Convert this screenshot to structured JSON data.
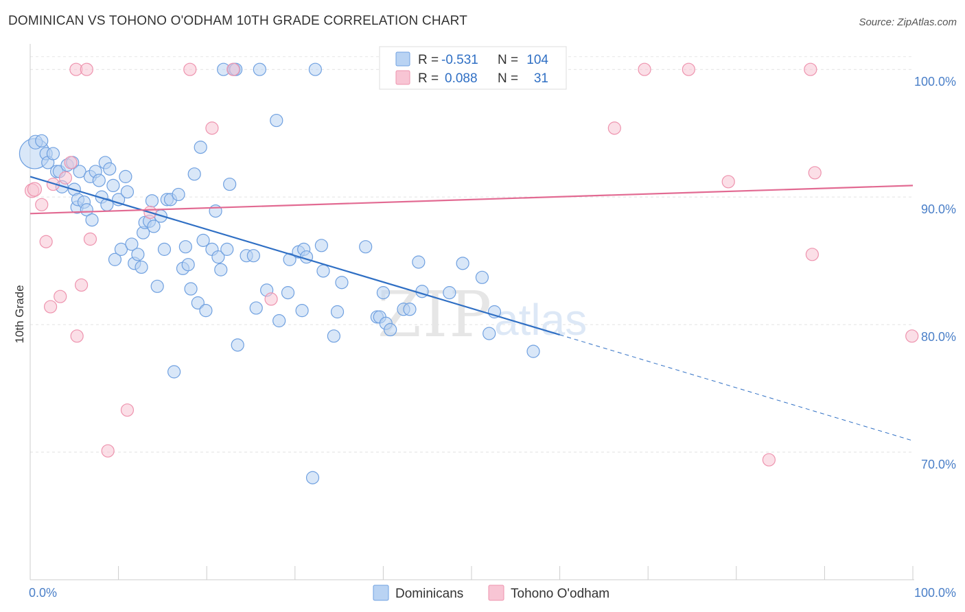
{
  "title": "DOMINICAN VS TOHONO O'ODHAM 10TH GRADE CORRELATION CHART",
  "source": "Source: ZipAtlas.com",
  "watermark": {
    "part1": "ZIP",
    "part2": "atlas"
  },
  "chart_data": {
    "type": "scatter",
    "ylabel": "10th Grade",
    "xlim": [
      0,
      100
    ],
    "ylim": [
      60,
      102
    ],
    "x_tick_labels": [
      {
        "value": 0,
        "label": "0.0%"
      },
      {
        "value": 100,
        "label": "100.0%"
      }
    ],
    "y_tick_labels": [
      {
        "value": 100,
        "label": "100.0%"
      },
      {
        "value": 90,
        "label": "90.0%"
      },
      {
        "value": 80,
        "label": "80.0%"
      },
      {
        "value": 70,
        "label": "70.0%"
      }
    ],
    "grid": true,
    "legend_position": "bottom-center",
    "stats": [
      {
        "r_label": "R =",
        "r": "-0.531",
        "n_label": "N =",
        "n": "104",
        "color": "#a9c8ef"
      },
      {
        "r_label": "R =",
        "r": "0.088",
        "n_label": "N =",
        "n": "31",
        "color": "#f5b5c8"
      }
    ],
    "series": [
      {
        "name": "Dominicans",
        "color": "#6fa0e0",
        "fill": "#b9d3f3",
        "trend": {
          "x1": 0,
          "y1": 91.6,
          "x2": 60,
          "y2": 79.2,
          "dash_to_x": 100,
          "dash_to_y": 70.9,
          "color": "#2f6fc4"
        },
        "points": [
          [
            0.5,
            93.4,
            22
          ],
          [
            0.6,
            94.3,
            10
          ],
          [
            1.3,
            94.4,
            9
          ],
          [
            1.8,
            93.4,
            9
          ],
          [
            2.0,
            92.7,
            9
          ],
          [
            2.6,
            93.4,
            9
          ],
          [
            3.0,
            92.0,
            9
          ],
          [
            3.3,
            92.0,
            9
          ],
          [
            3.6,
            90.8,
            9
          ],
          [
            4.2,
            92.5,
            9
          ],
          [
            4.8,
            92.7,
            9
          ],
          [
            5.0,
            90.6,
            9
          ],
          [
            5.3,
            89.2,
            9
          ],
          [
            5.4,
            89.8,
            9
          ],
          [
            5.6,
            92.0,
            9
          ],
          [
            6.1,
            89.6,
            9
          ],
          [
            6.4,
            89.0,
            9
          ],
          [
            6.8,
            91.6,
            9
          ],
          [
            7.0,
            88.2,
            9
          ],
          [
            7.4,
            92.0,
            9
          ],
          [
            7.8,
            91.3,
            9
          ],
          [
            8.1,
            90.0,
            9
          ],
          [
            8.5,
            92.7,
            9
          ],
          [
            8.7,
            89.4,
            9
          ],
          [
            9.0,
            92.2,
            9
          ],
          [
            9.4,
            90.9,
            9
          ],
          [
            9.6,
            85.1,
            9
          ],
          [
            10.0,
            89.8,
            9
          ],
          [
            10.3,
            85.9,
            9
          ],
          [
            10.8,
            91.6,
            9
          ],
          [
            11.0,
            90.4,
            9
          ],
          [
            11.5,
            86.3,
            9
          ],
          [
            11.8,
            84.8,
            9
          ],
          [
            12.2,
            85.5,
            9
          ],
          [
            12.6,
            84.5,
            9
          ],
          [
            12.8,
            87.2,
            9
          ],
          [
            13.0,
            88.0,
            9
          ],
          [
            13.5,
            88.1,
            9
          ],
          [
            13.8,
            89.7,
            9
          ],
          [
            14.0,
            87.7,
            9
          ],
          [
            14.4,
            83.0,
            9
          ],
          [
            14.8,
            88.5,
            9
          ],
          [
            15.2,
            85.9,
            9
          ],
          [
            15.5,
            89.8,
            9
          ],
          [
            15.9,
            89.8,
            9
          ],
          [
            16.3,
            76.3,
            9
          ],
          [
            16.8,
            90.2,
            9
          ],
          [
            17.3,
            84.4,
            9
          ],
          [
            17.6,
            86.1,
            9
          ],
          [
            17.9,
            84.7,
            9
          ],
          [
            18.2,
            82.8,
            9
          ],
          [
            18.6,
            91.8,
            9
          ],
          [
            19.0,
            81.7,
            9
          ],
          [
            19.3,
            93.9,
            9
          ],
          [
            19.6,
            86.6,
            9
          ],
          [
            19.9,
            81.1,
            9
          ],
          [
            20.6,
            85.9,
            9
          ],
          [
            21.0,
            88.9,
            9
          ],
          [
            21.3,
            85.3,
            9
          ],
          [
            21.6,
            84.3,
            9
          ],
          [
            21.9,
            100.0,
            9
          ],
          [
            22.3,
            85.9,
            9
          ],
          [
            22.6,
            91.0,
            9
          ],
          [
            23.1,
            100.0,
            9
          ],
          [
            23.3,
            100.0,
            9
          ],
          [
            23.5,
            78.4,
            9
          ],
          [
            24.5,
            85.4,
            9
          ],
          [
            25.3,
            85.4,
            9
          ],
          [
            25.6,
            81.3,
            9
          ],
          [
            26.0,
            100.0,
            9
          ],
          [
            26.8,
            82.7,
            9
          ],
          [
            27.9,
            96.0,
            9
          ],
          [
            28.2,
            80.3,
            9
          ],
          [
            29.2,
            82.5,
            9
          ],
          [
            29.4,
            85.1,
            9
          ],
          [
            30.4,
            85.7,
            9
          ],
          [
            30.8,
            81.1,
            9
          ],
          [
            31.0,
            85.9,
            9
          ],
          [
            31.3,
            85.3,
            9
          ],
          [
            32.0,
            68.0,
            9
          ],
          [
            32.3,
            100.0,
            9
          ],
          [
            33.0,
            86.2,
            9
          ],
          [
            33.2,
            84.2,
            9
          ],
          [
            34.4,
            79.1,
            9
          ],
          [
            34.8,
            81.0,
            9
          ],
          [
            35.3,
            83.3,
            9
          ],
          [
            38.0,
            86.1,
            9
          ],
          [
            39.3,
            80.6,
            9
          ],
          [
            39.6,
            80.6,
            9
          ],
          [
            40.0,
            82.5,
            9
          ],
          [
            40.3,
            80.1,
            9
          ],
          [
            40.8,
            79.6,
            9
          ],
          [
            42.3,
            81.2,
            9
          ],
          [
            43.0,
            81.2,
            9
          ],
          [
            44.0,
            84.9,
            9
          ],
          [
            44.4,
            82.6,
            9
          ],
          [
            47.5,
            82.5,
            9
          ],
          [
            49.0,
            84.8,
            9
          ],
          [
            51.2,
            83.7,
            9
          ],
          [
            52.0,
            79.3,
            9
          ],
          [
            52.6,
            81.0,
            9
          ],
          [
            57.0,
            77.9,
            9
          ]
        ]
      },
      {
        "name": "Tohono O'odham",
        "color": "#ee93ae",
        "fill": "#f8c5d4",
        "trend": {
          "x1": 0,
          "y1": 88.7,
          "x2": 100,
          "y2": 90.9,
          "color": "#e26a92"
        },
        "points": [
          [
            0.2,
            90.5,
            10
          ],
          [
            0.5,
            90.6,
            10
          ],
          [
            1.3,
            89.4,
            9
          ],
          [
            1.8,
            86.5,
            9
          ],
          [
            2.3,
            81.4,
            9
          ],
          [
            2.6,
            91.0,
            9
          ],
          [
            3.4,
            82.2,
            9
          ],
          [
            4.0,
            91.5,
            9
          ],
          [
            4.6,
            92.7,
            9
          ],
          [
            5.2,
            100.0,
            9
          ],
          [
            5.3,
            79.1,
            9
          ],
          [
            5.8,
            83.1,
            9
          ],
          [
            6.4,
            100.0,
            9
          ],
          [
            6.8,
            86.7,
            9
          ],
          [
            8.8,
            70.1,
            9
          ],
          [
            11.0,
            73.3,
            9
          ],
          [
            13.6,
            88.8,
            9
          ],
          [
            18.1,
            100.0,
            9
          ],
          [
            20.6,
            95.4,
            9
          ],
          [
            23.0,
            100.0,
            9
          ],
          [
            27.3,
            82.0,
            9
          ],
          [
            47.5,
            100.0,
            9
          ],
          [
            66.2,
            95.4,
            9
          ],
          [
            69.6,
            100.0,
            9
          ],
          [
            74.6,
            100.0,
            9
          ],
          [
            79.1,
            91.2,
            9
          ],
          [
            83.7,
            69.4,
            9
          ],
          [
            88.4,
            100.0,
            9
          ],
          [
            88.6,
            85.5,
            9
          ],
          [
            88.9,
            91.9,
            9
          ],
          [
            99.9,
            79.1,
            9
          ]
        ]
      }
    ]
  }
}
